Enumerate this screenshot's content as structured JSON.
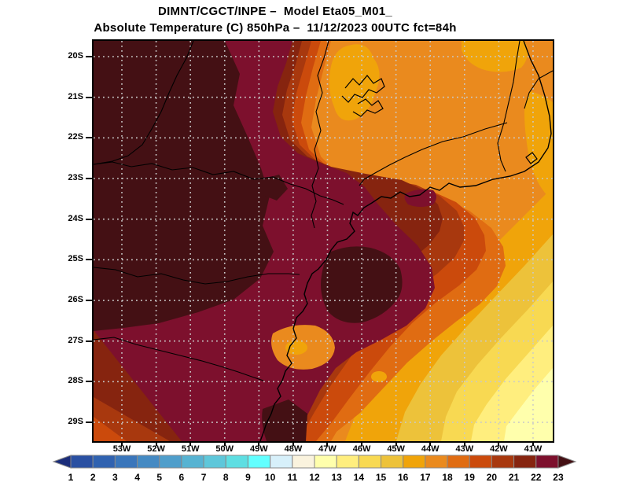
{
  "title": {
    "line1": "DIMNT/CGCT/INPE –  Model Eta05_M01_",
    "line2": "Absolute Temperature (C) 850hPa –  11/12/2023 00UTC fct=84h"
  },
  "map": {
    "lat_labels": [
      "20S",
      "21S",
      "22S",
      "23S",
      "24S",
      "25S",
      "26S",
      "27S",
      "28S",
      "29S"
    ],
    "lon_labels": [
      "53W",
      "52W",
      "51W",
      "50W",
      "49W",
      "48W",
      "47W",
      "46W",
      "45W",
      "44W",
      "43W",
      "42W",
      "41W"
    ],
    "grid_color": "#c9c9c9",
    "outline_color": "#000000"
  },
  "colorbar": {
    "tick_labels": [
      "1",
      "2",
      "3",
      "4",
      "5",
      "6",
      "7",
      "8",
      "9",
      "10",
      "11",
      "12",
      "13",
      "14",
      "15",
      "16",
      "17",
      "18",
      "19",
      "20",
      "21",
      "22",
      "23"
    ],
    "colors": [
      "#1b2d7a",
      "#2a50a2",
      "#3062b0",
      "#3a76bb",
      "#458ac3",
      "#4f9ecb",
      "#57b3d2",
      "#5ec7da",
      "#5edee2",
      "#62ffff",
      "#d7f0fa",
      "#faf3de",
      "#ffffac",
      "#ffee7e",
      "#f8d952",
      "#edc23a",
      "#f0a40a",
      "#ea8a1e",
      "#e06c12",
      "#cb4a0c",
      "#a8380e",
      "#86240f",
      "#7d102d",
      "#441014"
    ],
    "border_color": "#888888"
  },
  "chart_data": {
    "type": "filled_contour_map",
    "variable": "Absolute Temperature (C) at 850hPa",
    "model": "Eta05_M01_",
    "run": "11/12/2023 00UTC",
    "forecast": "fct=84h",
    "lat_ticks": [
      "20S",
      "21S",
      "22S",
      "23S",
      "24S",
      "25S",
      "26S",
      "27S",
      "28S",
      "29S"
    ],
    "lon_ticks": [
      "53W",
      "52W",
      "51W",
      "50W",
      "49W",
      "48W",
      "47W",
      "46W",
      "45W",
      "44W",
      "43W",
      "42W",
      "41W"
    ],
    "contour_levels_c": [
      1,
      2,
      3,
      4,
      5,
      6,
      7,
      8,
      9,
      10,
      11,
      12,
      13,
      14,
      15,
      16,
      17,
      18,
      19,
      20,
      21,
      22,
      23
    ],
    "field_description": "Warmest air (above 23C, dark maroon) over the northwest interior; values decrease southeastward through 22-17C bands to 12-13C (pale yellow) in the far southeast ocean corner; orange 16-18C over the northeast."
  }
}
